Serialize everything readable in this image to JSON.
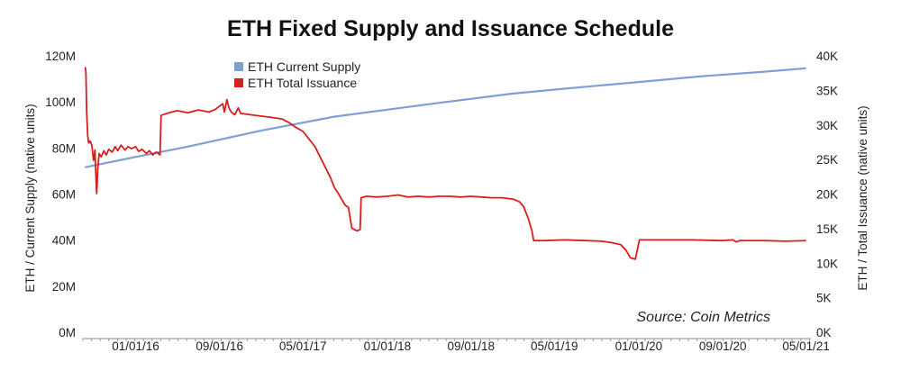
{
  "chart_data": {
    "type": "line",
    "title": "ETH Fixed Supply and Issuance Schedule",
    "ylabel_left": "ETH / Current Supply (native units)",
    "ylabel_right": "ETH / Total Issuance (native units)",
    "source": "Source: Coin Metrics",
    "legend_position": "top-left",
    "grid": false,
    "xlim": [
      "2015-08-01",
      "2021-05-15"
    ],
    "ylim_left": [
      0,
      120000000
    ],
    "ylim_right": [
      0,
      40000
    ],
    "x_ticks": [
      {
        "date": "2016-01-01",
        "label": "01/01/16"
      },
      {
        "date": "2016-09-01",
        "label": "09/01/16"
      },
      {
        "date": "2017-05-01",
        "label": "05/01/17"
      },
      {
        "date": "2018-01-01",
        "label": "01/01/18"
      },
      {
        "date": "2018-09-01",
        "label": "09/01/18"
      },
      {
        "date": "2019-05-01",
        "label": "05/01/19"
      },
      {
        "date": "2020-01-01",
        "label": "01/01/20"
      },
      {
        "date": "2020-09-01",
        "label": "09/01/20"
      },
      {
        "date": "2021-05-01",
        "label": "05/01/21"
      }
    ],
    "y_ticks_left": [
      {
        "value": 0,
        "label": "0M"
      },
      {
        "value": 20000000,
        "label": "20M"
      },
      {
        "value": 40000000,
        "label": "40M"
      },
      {
        "value": 60000000,
        "label": "60M"
      },
      {
        "value": 80000000,
        "label": "80M"
      },
      {
        "value": 100000000,
        "label": "100M"
      },
      {
        "value": 120000000,
        "label": "120M"
      }
    ],
    "y_ticks_right": [
      {
        "value": 0,
        "label": "0K"
      },
      {
        "value": 5000,
        "label": "5K"
      },
      {
        "value": 10000,
        "label": "10K"
      },
      {
        "value": 15000,
        "label": "15K"
      },
      {
        "value": 20000,
        "label": "20K"
      },
      {
        "value": 25000,
        "label": "25K"
      },
      {
        "value": 30000,
        "label": "30K"
      },
      {
        "value": 35000,
        "label": "35K"
      },
      {
        "value": 40000,
        "label": "40K"
      }
    ],
    "series": [
      {
        "name": "ETH Current Supply",
        "axis": "left",
        "color": "#7f9fd4",
        "points": [
          [
            "2015-08-07",
            72000000
          ],
          [
            "2016-01-01",
            76500000
          ],
          [
            "2016-06-01",
            81000000
          ],
          [
            "2017-01-01",
            88000000
          ],
          [
            "2017-08-01",
            94000000
          ],
          [
            "2018-01-01",
            97000000
          ],
          [
            "2018-06-01",
            100000000
          ],
          [
            "2019-01-01",
            104000000
          ],
          [
            "2019-08-01",
            107000000
          ],
          [
            "2020-01-01",
            109000000
          ],
          [
            "2020-07-01",
            111500000
          ],
          [
            "2021-01-01",
            113500000
          ],
          [
            "2021-05-01",
            115000000
          ]
        ]
      },
      {
        "name": "ETH Total Issuance",
        "axis": "right",
        "color": "#d62020",
        "points": [
          [
            "2015-08-08",
            38500
          ],
          [
            "2015-08-10",
            37500
          ],
          [
            "2015-08-12",
            32000
          ],
          [
            "2015-08-15",
            28500
          ],
          [
            "2015-08-18",
            27500
          ],
          [
            "2015-08-22",
            27800
          ],
          [
            "2015-08-27",
            27200
          ],
          [
            "2015-09-01",
            25000
          ],
          [
            "2015-09-05",
            26500
          ],
          [
            "2015-09-08",
            22500
          ],
          [
            "2015-09-10",
            20200
          ],
          [
            "2015-09-13",
            23500
          ],
          [
            "2015-09-17",
            26000
          ],
          [
            "2015-09-23",
            25500
          ],
          [
            "2015-10-01",
            26400
          ],
          [
            "2015-10-08",
            25800
          ],
          [
            "2015-10-15",
            26600
          ],
          [
            "2015-10-25",
            26200
          ],
          [
            "2015-11-03",
            27000
          ],
          [
            "2015-11-10",
            26400
          ],
          [
            "2015-11-20",
            27200
          ],
          [
            "2015-12-01",
            26500
          ],
          [
            "2015-12-10",
            27000
          ],
          [
            "2015-12-20",
            26700
          ],
          [
            "2016-01-01",
            27000
          ],
          [
            "2016-01-10",
            26300
          ],
          [
            "2016-01-20",
            26600
          ],
          [
            "2016-02-01",
            26000
          ],
          [
            "2016-02-10",
            26400
          ],
          [
            "2016-02-20",
            25800
          ],
          [
            "2016-03-01",
            26200
          ],
          [
            "2016-03-12",
            25800
          ],
          [
            "2016-03-15",
            31500
          ],
          [
            "2016-04-01",
            31800
          ],
          [
            "2016-05-01",
            32200
          ],
          [
            "2016-06-01",
            31900
          ],
          [
            "2016-07-01",
            32300
          ],
          [
            "2016-08-01",
            32000
          ],
          [
            "2016-08-20",
            32400
          ],
          [
            "2016-09-10",
            33200
          ],
          [
            "2016-09-15",
            32000
          ],
          [
            "2016-09-22",
            33800
          ],
          [
            "2016-09-28",
            32600
          ],
          [
            "2016-10-05",
            32000
          ],
          [
            "2016-10-15",
            31600
          ],
          [
            "2016-10-25",
            32600
          ],
          [
            "2016-11-01",
            31800
          ],
          [
            "2016-12-01",
            31600
          ],
          [
            "2017-01-01",
            31400
          ],
          [
            "2017-02-01",
            31200
          ],
          [
            "2017-03-01",
            31000
          ],
          [
            "2017-03-20",
            30500
          ],
          [
            "2017-04-10",
            29800
          ],
          [
            "2017-05-01",
            29200
          ],
          [
            "2017-05-20",
            28000
          ],
          [
            "2017-06-05",
            27000
          ],
          [
            "2017-06-20",
            25500
          ],
          [
            "2017-07-05",
            24000
          ],
          [
            "2017-07-20",
            22500
          ],
          [
            "2017-08-01",
            21000
          ],
          [
            "2017-08-12",
            20200
          ],
          [
            "2017-08-20",
            19500
          ],
          [
            "2017-09-01",
            18500
          ],
          [
            "2017-09-10",
            18200
          ],
          [
            "2017-09-20",
            15200
          ],
          [
            "2017-10-05",
            14800
          ],
          [
            "2017-10-14",
            15000
          ],
          [
            "2017-10-17",
            19600
          ],
          [
            "2017-11-01",
            19800
          ],
          [
            "2017-12-01",
            19700
          ],
          [
            "2018-01-01",
            19800
          ],
          [
            "2018-02-01",
            20000
          ],
          [
            "2018-03-01",
            19700
          ],
          [
            "2018-04-01",
            19800
          ],
          [
            "2018-05-01",
            19700
          ],
          [
            "2018-06-01",
            19800
          ],
          [
            "2018-07-01",
            19800
          ],
          [
            "2018-08-01",
            19700
          ],
          [
            "2018-09-01",
            19800
          ],
          [
            "2018-10-01",
            19700
          ],
          [
            "2018-11-01",
            19600
          ],
          [
            "2018-12-01",
            19600
          ],
          [
            "2019-01-01",
            19400
          ],
          [
            "2019-01-20",
            19000
          ],
          [
            "2019-02-01",
            18300
          ],
          [
            "2019-02-15",
            16500
          ],
          [
            "2019-02-25",
            14800
          ],
          [
            "2019-03-02",
            13400
          ],
          [
            "2019-04-01",
            13400
          ],
          [
            "2019-06-01",
            13500
          ],
          [
            "2019-08-01",
            13400
          ],
          [
            "2019-09-15",
            13300
          ],
          [
            "2019-10-15",
            13100
          ],
          [
            "2019-11-10",
            12800
          ],
          [
            "2019-11-25",
            12000
          ],
          [
            "2019-12-08",
            10900
          ],
          [
            "2019-12-22",
            10700
          ],
          [
            "2020-01-03",
            13500
          ],
          [
            "2020-03-01",
            13500
          ],
          [
            "2020-06-01",
            13500
          ],
          [
            "2020-09-01",
            13400
          ],
          [
            "2020-10-01",
            13500
          ],
          [
            "2020-10-10",
            13200
          ],
          [
            "2020-10-20",
            13400
          ],
          [
            "2021-01-01",
            13400
          ],
          [
            "2021-03-01",
            13300
          ],
          [
            "2021-05-01",
            13400
          ]
        ]
      }
    ]
  }
}
